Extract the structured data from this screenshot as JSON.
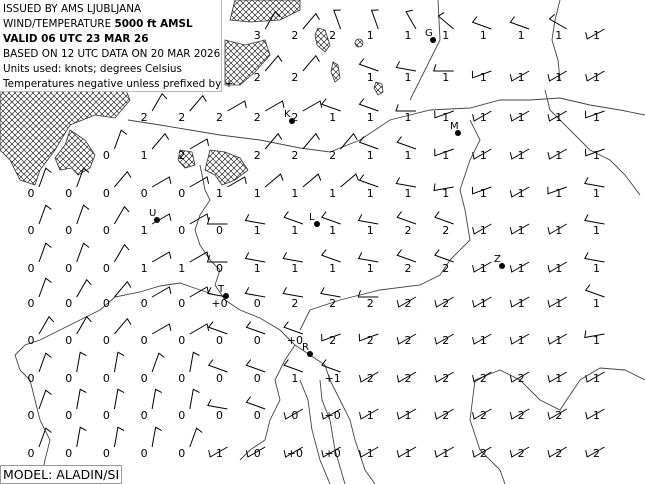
{
  "header": {
    "issued_by": "ISSUED BY AMS LJUBLJANA",
    "product_prefix": "WIND/TEMPERATURE ",
    "level": "5000 ft AMSL",
    "valid": "VALID 06 UTC 23 MAR 26",
    "based_on": "BASED ON 12 UTC DATA ON 20 MAR 2026",
    "units": "Units used: knots; degrees Celsius",
    "note": "Temperatures negative unless prefixed by +"
  },
  "model": "MODEL: ALADIN/SI",
  "cities": [
    {
      "label": "G"
    },
    {
      "label": "K"
    },
    {
      "label": "M"
    },
    {
      "label": "U"
    },
    {
      "label": "L"
    },
    {
      "label": "Z"
    },
    {
      "label": "T"
    },
    {
      "label": "R"
    }
  ],
  "temperature_grid": [
    [
      "",
      "",
      "",
      "",
      "",
      "",
      "3",
      "2",
      "2",
      "1",
      "1",
      "1",
      "1",
      "1",
      "1",
      "1"
    ],
    [
      "",
      "",
      "",
      "",
      "",
      "",
      "2",
      "2",
      "",
      "1",
      "1",
      "1",
      "1",
      "1",
      "1",
      "1"
    ],
    [
      "",
      "",
      "",
      "2",
      "2",
      "2",
      "2",
      "2",
      "1",
      "1",
      "1",
      "1",
      "1",
      "1",
      "1",
      "1"
    ],
    [
      "",
      "",
      "0",
      "1",
      "2",
      "",
      "2",
      "2",
      "2",
      "1",
      "1",
      "1",
      "1",
      "1",
      "1",
      "1"
    ],
    [
      "0",
      "0",
      "0",
      "0",
      "0",
      "1",
      "1",
      "1",
      "1",
      "1",
      "1",
      "1",
      "1",
      "1",
      "1",
      "1"
    ],
    [
      "0",
      "0",
      "0",
      "1",
      "0",
      "0",
      "1",
      "1",
      "1",
      "1",
      "2",
      "2",
      "1",
      "1",
      "1",
      "1"
    ],
    [
      "0",
      "0",
      "0",
      "1",
      "1",
      "0",
      "1",
      "1",
      "1",
      "1",
      "2",
      "2",
      "1",
      "1",
      "1",
      "1"
    ],
    [
      "0",
      "0",
      "0",
      "0",
      "0",
      "+0",
      "0",
      "2",
      "2",
      "2",
      "2",
      "2",
      "1",
      "1",
      "1",
      "1"
    ],
    [
      "0",
      "0",
      "0",
      "0",
      "0",
      "0",
      "0",
      "+0",
      "2",
      "2",
      "2",
      "2",
      "1",
      "1",
      "1",
      "1"
    ],
    [
      "0",
      "0",
      "0",
      "0",
      "0",
      "0",
      "0",
      "1",
      "+1",
      "2",
      "2",
      "2",
      "2",
      "2",
      "1",
      "1"
    ],
    [
      "0",
      "0",
      "0",
      "0",
      "0",
      "0",
      "0",
      "0",
      "+0",
      "1",
      "1",
      "2",
      "2",
      "2",
      "2",
      "1"
    ],
    [
      "0",
      "0",
      "0",
      "0",
      "0",
      "1",
      "0",
      "+0",
      "+0",
      "1",
      "1",
      "1",
      "2",
      "2",
      "2",
      "2"
    ]
  ],
  "wind_from_deg_grid": [
    [
      0,
      0,
      0,
      0,
      0,
      0,
      30,
      40,
      340,
      340,
      330,
      310,
      290,
      290,
      300,
      240
    ],
    [
      0,
      0,
      0,
      0,
      0,
      0,
      40,
      40,
      0,
      290,
      280,
      270,
      250,
      240,
      240,
      240
    ],
    [
      0,
      0,
      0,
      30,
      40,
      60,
      60,
      60,
      290,
      290,
      270,
      250,
      240,
      240,
      240,
      250
    ],
    [
      0,
      0,
      20,
      40,
      60,
      0,
      40,
      40,
      40,
      290,
      290,
      250,
      240,
      240,
      240,
      250
    ],
    [
      20,
      20,
      40,
      60,
      60,
      60,
      50,
      50,
      50,
      290,
      280,
      260,
      250,
      240,
      250,
      280
    ],
    [
      20,
      20,
      30,
      60,
      60,
      270,
      280,
      290,
      290,
      280,
      290,
      290,
      240,
      240,
      240,
      280
    ],
    [
      20,
      20,
      30,
      60,
      60,
      270,
      280,
      280,
      290,
      280,
      290,
      290,
      240,
      240,
      240,
      280
    ],
    [
      20,
      30,
      40,
      60,
      60,
      280,
      280,
      280,
      280,
      270,
      240,
      240,
      240,
      240,
      240,
      290
    ],
    [
      30,
      30,
      40,
      60,
      60,
      290,
      290,
      290,
      250,
      250,
      240,
      240,
      240,
      240,
      240,
      260
    ],
    [
      20,
      10,
      10,
      20,
      10,
      290,
      290,
      290,
      290,
      240,
      240,
      240,
      240,
      240,
      240,
      240
    ],
    [
      20,
      10,
      10,
      10,
      10,
      280,
      290,
      240,
      240,
      240,
      240,
      240,
      240,
      240,
      240,
      240
    ],
    [
      20,
      10,
      10,
      10,
      20,
      240,
      240,
      240,
      240,
      240,
      240,
      240,
      240,
      240,
      240,
      240
    ]
  ],
  "colors": {
    "line": "#000000",
    "coast": "#444444",
    "hatch": "#000000"
  }
}
